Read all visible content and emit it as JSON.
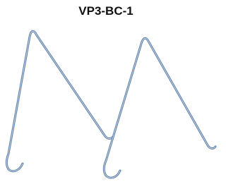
{
  "title": "VP3-BC-1"
}
